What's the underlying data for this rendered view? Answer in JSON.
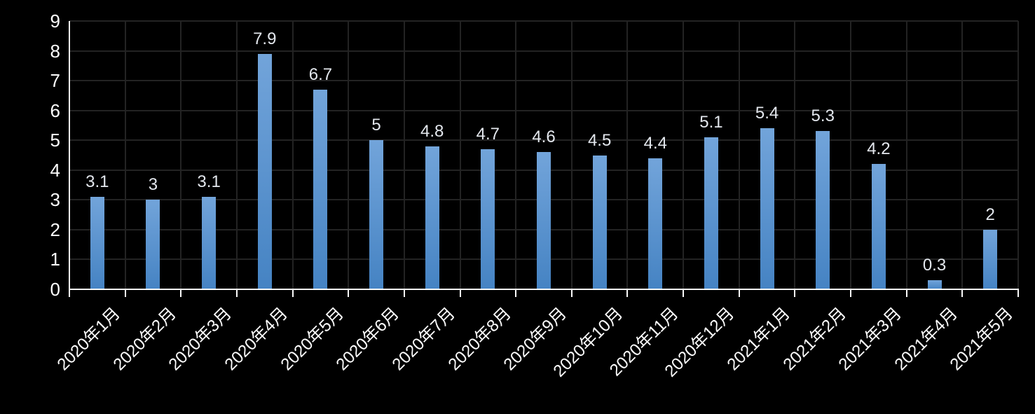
{
  "chart_data": {
    "type": "bar",
    "title": "",
    "xlabel": "",
    "ylabel": "",
    "categories": [
      "2020年1月",
      "2020年2月",
      "2020年3月",
      "2020年4月",
      "2020年5月",
      "2020年6月",
      "2020年7月",
      "2020年8月",
      "2020年9月",
      "2020年10月",
      "2020年11月",
      "2020年12月",
      "2021年1月",
      "2021年2月",
      "2021年3月",
      "2021年4月",
      "2021年5月"
    ],
    "values": [
      3.1,
      3,
      3.1,
      7.9,
      6.7,
      5,
      4.8,
      4.7,
      4.6,
      4.5,
      4.4,
      5.1,
      5.4,
      5.3,
      4.2,
      0.3,
      2
    ],
    "data_labels": [
      "3.1",
      "3",
      "3.1",
      "7.9",
      "6.7",
      "5",
      "4.8",
      "4.7",
      "4.6",
      "4.5",
      "4.4",
      "5.1",
      "5.4",
      "5.3",
      "4.2",
      "0.3",
      "2"
    ],
    "ylim": [
      0,
      9
    ],
    "yticks": [
      "0",
      "1",
      "2",
      "3",
      "4",
      "5",
      "6",
      "7",
      "8",
      "9"
    ],
    "grid": true,
    "legend_position": "none",
    "colors": {
      "background": "#000000",
      "bar_gradient_top": "#72A4DA",
      "bar_gradient_bottom": "#4583C3",
      "gridline": "#232323",
      "axis_line": "#FAFAFA",
      "axis_label": "#FFFFFF",
      "data_label": "#E3E7ED"
    }
  }
}
